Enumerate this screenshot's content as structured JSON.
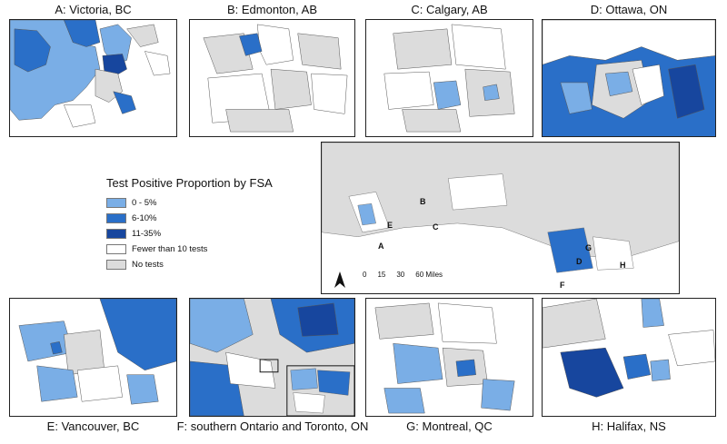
{
  "panels": {
    "a": "A: Victoria, BC",
    "b": "B: Edmonton, AB",
    "c": "C: Calgary, AB",
    "d": "D: Ottawa, ON",
    "e": "E: Vancouver, BC",
    "f": "F: southern Ontario and Toronto, ON",
    "g": "G: Montreal, QC",
    "h": "H: Halifax, NS"
  },
  "legend": {
    "title": "Test Positive Proportion by FSA",
    "items": [
      {
        "label": "0 - 5%",
        "color": "#7aaee6"
      },
      {
        "label": "6-10%",
        "color": "#2a6fc8"
      },
      {
        "label": "11-35%",
        "color": "#17469e"
      },
      {
        "label": "Fewer than 10 tests",
        "color": "#ffffff"
      },
      {
        "label": "No tests",
        "color": "#dcdcdc"
      }
    ]
  },
  "overview": {
    "markers": [
      "A",
      "B",
      "C",
      "D",
      "E",
      "F",
      "G",
      "H"
    ],
    "scale": {
      "ticks": [
        "0",
        "15",
        "30",
        "60 Miles"
      ]
    },
    "north_arrow": "N"
  }
}
